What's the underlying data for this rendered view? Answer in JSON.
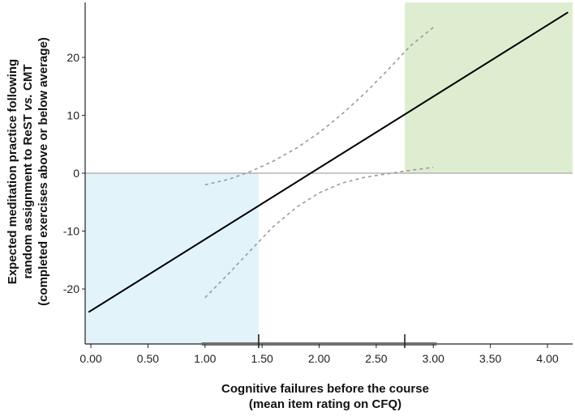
{
  "chart_data": {
    "type": "line",
    "xlabel": [
      "Cognitive failures before the course",
      "(mean item rating on CFQ)"
    ],
    "ylabel": [
      "Expected meditation practice following",
      "random assignment to ReST vs. CMT",
      "(completed exercises above or below average)"
    ],
    "ylabel_parts": {
      "line2_pre": "random assignment to ReST ",
      "line2_italic": "vs.",
      "line2_post": " CMT"
    },
    "xlim": [
      -0.05,
      4.22
    ],
    "ylim": [
      -29.5,
      29.5
    ],
    "x_ticks": [
      0.0,
      0.5,
      1.0,
      1.5,
      2.0,
      2.5,
      3.0,
      3.5,
      4.0
    ],
    "x_tick_labels": [
      "0.00",
      "0.50",
      "1.00",
      "1.50",
      "2.00",
      "2.50",
      "3.00",
      "3.50",
      "4.00"
    ],
    "y_ticks": [
      -20,
      -10,
      0,
      10,
      20
    ],
    "y_tick_labels": [
      "-20",
      "-10",
      "0",
      "10",
      "20"
    ],
    "reference_line_y": 0,
    "series": [
      {
        "role": "regression",
        "style": "solid",
        "color": "#000000",
        "x": [
          -0.02,
          4.18
        ],
        "y": [
          -24.0,
          27.8
        ]
      },
      {
        "role": "ci_upper",
        "style": "dashed",
        "color": "#9a9a9a",
        "x": [
          1.0,
          1.2,
          1.4,
          1.6,
          1.8,
          2.0,
          2.2,
          2.4,
          2.6,
          2.8,
          3.0
        ],
        "y": [
          -2.0,
          -1.1,
          0.3,
          2.1,
          4.3,
          7.0,
          10.2,
          13.8,
          17.8,
          22.0,
          25.2
        ]
      },
      {
        "role": "ci_lower",
        "style": "dashed",
        "color": "#9a9a9a",
        "x": [
          1.0,
          1.2,
          1.4,
          1.6,
          1.8,
          2.0,
          2.2,
          2.4,
          2.6,
          2.8,
          3.0
        ],
        "y": [
          -21.5,
          -17.5,
          -13.3,
          -9.2,
          -5.9,
          -3.4,
          -1.7,
          -0.7,
          -0.1,
          0.5,
          1.0
        ]
      }
    ],
    "regions": [
      {
        "name": "negative-effect-region",
        "x": [
          -0.05,
          1.47
        ],
        "y": [
          -29.5,
          0
        ],
        "color": "#e2f3fa"
      },
      {
        "name": "positive-effect-region",
        "x": [
          2.75,
          4.22
        ],
        "y": [
          0,
          29.5
        ],
        "color": "#deedd0"
      }
    ],
    "observed_range": {
      "x": [
        0.97,
        3.03
      ],
      "color": "#707070"
    },
    "region_boundaries": [
      1.47,
      2.75
    ]
  }
}
